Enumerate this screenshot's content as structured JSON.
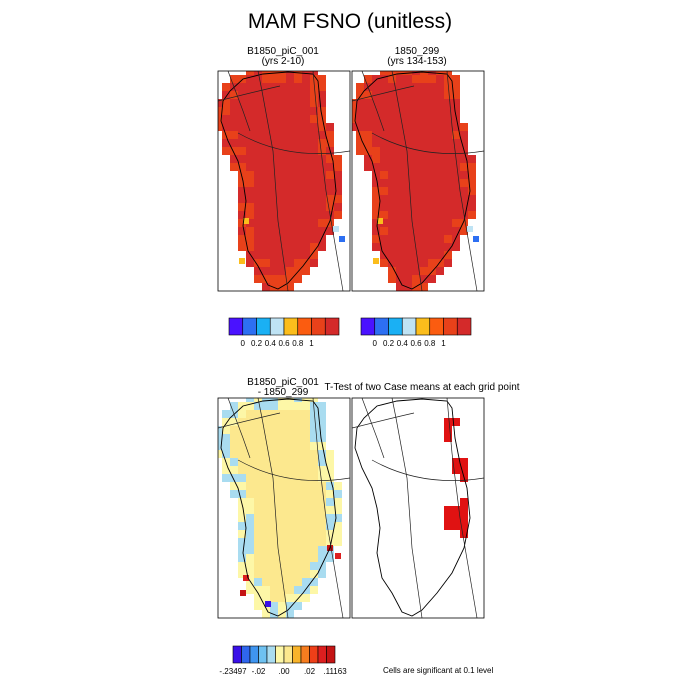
{
  "figure": {
    "title": "MAM FSNO (unitless)",
    "note": "Cells are significant at 0.1 level"
  },
  "colors": {
    "fsno_scale": [
      "#4a12ff",
      "#2d6ff2",
      "#1ab0f4",
      "#bfe3f4",
      "#fbbd1c",
      "#fb5c10",
      "#e8411a",
      "#d42a2a"
    ],
    "diff_scale": [
      "#3a10e8",
      "#2f66ee",
      "#3f95f0",
      "#6ec1f0",
      "#a9dcf0",
      "#fdf7a7",
      "#fce88e",
      "#f8b32a",
      "#f77d1f",
      "#ee3f18",
      "#dc1f1f",
      "#c41414"
    ],
    "significant": "#e01212",
    "land_mask": "#d52e2e"
  },
  "chart_data": [
    {
      "type": "heatmap",
      "panel": "top-left",
      "title_line1": "B1850_piC_001",
      "title_line2": "(yrs 2-10)",
      "colorbar_ticks": [
        "0",
        "0.2",
        "0.4",
        "0.6",
        "0.8",
        "1"
      ],
      "colorbar_bins": 8,
      "dominant_value": 1.0,
      "margin_values": [
        0.8,
        0.9
      ],
      "spot_values": [
        0.6,
        0.4,
        0.2
      ]
    },
    {
      "type": "heatmap",
      "panel": "top-right",
      "title_line1": "1850_299",
      "title_line2": "(yrs 134-153)",
      "colorbar_ticks": [
        "0",
        "0.2",
        "0.4",
        "0.6",
        "0.8",
        "1"
      ],
      "colorbar_bins": 8,
      "dominant_value": 1.0,
      "margin_values": [
        0.8,
        0.9
      ],
      "spot_values": [
        0.6,
        0.4,
        0.2
      ]
    },
    {
      "type": "heatmap",
      "panel": "bottom-left",
      "title_line1": "B1850_piC_001",
      "title_line2": "- 1850_299",
      "colorbar_ticks": [
        "-.23497",
        "-.02",
        ".00",
        ".02",
        ".11163"
      ],
      "colorbar_bins": 12,
      "dominant_value": 0.0,
      "margin_values": [
        -0.01,
        -0.02
      ],
      "spot_values": [
        -0.23497,
        0.05,
        0.11163
      ]
    },
    {
      "type": "heatmap",
      "panel": "bottom-right",
      "title_line1": "T-Test of two Case means at each grid point",
      "significant_value": 1
    }
  ]
}
